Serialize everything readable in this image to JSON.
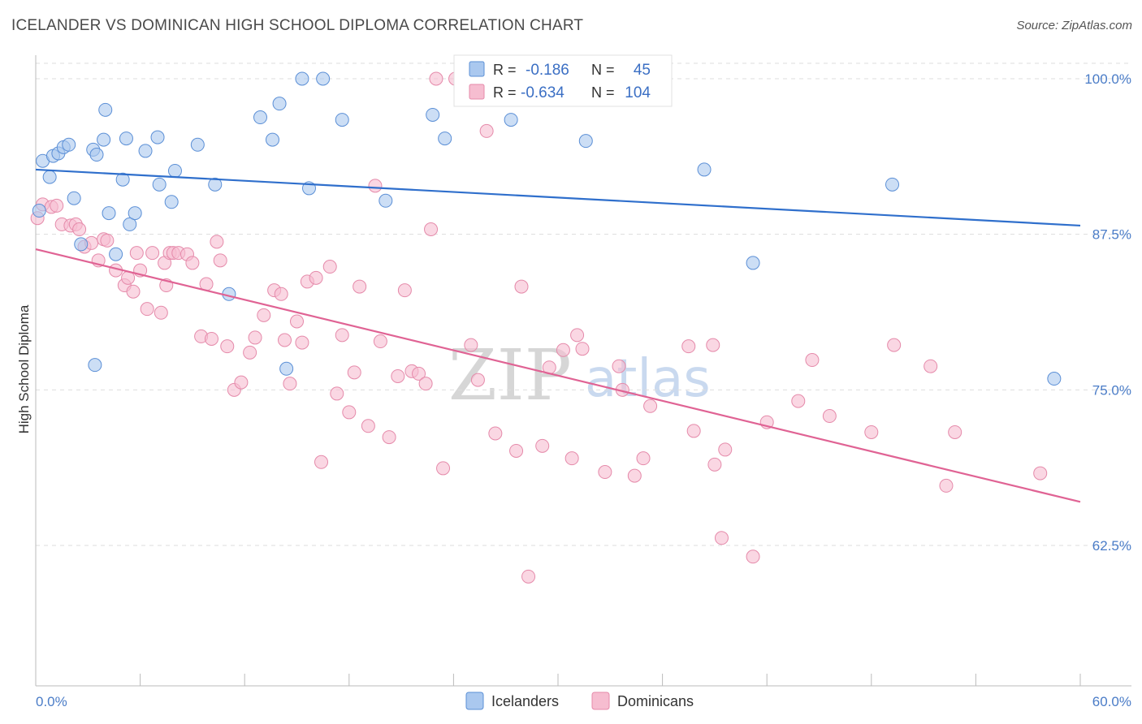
{
  "header": {
    "title": "ICELANDER VS DOMINICAN HIGH SCHOOL DIPLOMA CORRELATION CHART",
    "source": "Source: ZipAtlas.com"
  },
  "legend": {
    "rows": [
      {
        "r_label": "R =",
        "r_value": "-0.186",
        "n_label": "N =",
        "n_value": "45"
      },
      {
        "r_label": "R =",
        "r_value": "-0.634",
        "n_label": "N =",
        "n_value": "104"
      }
    ]
  },
  "bottom_legend": {
    "items": [
      "Icelanders",
      "Dominicans"
    ]
  },
  "watermark": {
    "zip": "ZIP",
    "atlas": "atlas"
  },
  "colors": {
    "blue_fill": "#aac8ef",
    "blue_stroke": "#5b8fd6",
    "blue_line": "#2f6fcc",
    "pink_fill": "#f6bdd0",
    "pink_stroke": "#e58aaa",
    "pink_line": "#e06394",
    "tick_text": "#4a7cc7",
    "grid": "#dddddd"
  },
  "chart_data": {
    "type": "scatter",
    "title": "ICELANDER VS DOMINICAN HIGH SCHOOL DIPLOMA CORRELATION CHART",
    "xlabel": "",
    "ylabel": "High School Diploma",
    "xlim": [
      0,
      60
    ],
    "ylim": [
      50,
      101.5
    ],
    "x_tick_labels": [
      "0.0%",
      "60.0%"
    ],
    "y_ticks": [
      62.5,
      75.0,
      87.5,
      100.0
    ],
    "y_tick_labels": [
      "62.5%",
      "75.0%",
      "87.5%",
      "100.0%"
    ],
    "grid": true,
    "legend_position": "top-center",
    "series": [
      {
        "name": "Icelanders",
        "R": -0.186,
        "N": 45,
        "trend": {
          "x": [
            0,
            60
          ],
          "y": [
            92.7,
            88.2
          ]
        },
        "points": [
          [
            0.2,
            89.4
          ],
          [
            0.4,
            93.4
          ],
          [
            0.8,
            92.1
          ],
          [
            1.0,
            93.8
          ],
          [
            1.3,
            94.0
          ],
          [
            1.6,
            94.5
          ],
          [
            1.9,
            94.7
          ],
          [
            2.2,
            90.4
          ],
          [
            2.6,
            86.7
          ],
          [
            3.3,
            94.3
          ],
          [
            3.5,
            93.9
          ],
          [
            3.4,
            77.0
          ],
          [
            3.9,
            95.1
          ],
          [
            4.0,
            97.5
          ],
          [
            4.2,
            89.2
          ],
          [
            4.6,
            85.9
          ],
          [
            5.0,
            91.9
          ],
          [
            5.2,
            95.2
          ],
          [
            5.4,
            88.3
          ],
          [
            5.7,
            89.2
          ],
          [
            6.3,
            94.2
          ],
          [
            7.0,
            95.3
          ],
          [
            7.1,
            91.5
          ],
          [
            7.8,
            90.1
          ],
          [
            8.0,
            92.6
          ],
          [
            9.3,
            94.7
          ],
          [
            10.3,
            91.5
          ],
          [
            11.1,
            82.7
          ],
          [
            12.9,
            96.9
          ],
          [
            13.6,
            95.1
          ],
          [
            14.0,
            98.0
          ],
          [
            14.4,
            76.7
          ],
          [
            15.3,
            100.0
          ],
          [
            15.7,
            91.2
          ],
          [
            16.5,
            100.0
          ],
          [
            17.6,
            96.7
          ],
          [
            20.1,
            90.2
          ],
          [
            22.8,
            97.1
          ],
          [
            23.5,
            95.2
          ],
          [
            27.3,
            96.7
          ],
          [
            31.6,
            95.0
          ],
          [
            38.4,
            92.7
          ],
          [
            41.2,
            85.2
          ],
          [
            49.2,
            91.5
          ],
          [
            58.5,
            75.9
          ]
        ]
      },
      {
        "name": "Dominicans",
        "R": -0.634,
        "N": 104,
        "trend": {
          "x": [
            0,
            60
          ],
          "y": [
            86.3,
            66.0
          ]
        },
        "points": [
          [
            0.1,
            88.8
          ],
          [
            0.4,
            89.9
          ],
          [
            0.9,
            89.7
          ],
          [
            1.2,
            89.8
          ],
          [
            1.5,
            88.3
          ],
          [
            2.0,
            88.2
          ],
          [
            2.3,
            88.3
          ],
          [
            2.5,
            87.9
          ],
          [
            2.8,
            86.5
          ],
          [
            3.2,
            86.8
          ],
          [
            3.6,
            85.4
          ],
          [
            3.9,
            87.1
          ],
          [
            4.1,
            87.0
          ],
          [
            4.6,
            84.6
          ],
          [
            5.1,
            83.4
          ],
          [
            5.3,
            84.0
          ],
          [
            5.6,
            82.9
          ],
          [
            5.8,
            86.0
          ],
          [
            6.0,
            84.6
          ],
          [
            6.4,
            81.5
          ],
          [
            6.7,
            86.0
          ],
          [
            7.2,
            81.2
          ],
          [
            7.4,
            85.2
          ],
          [
            7.5,
            83.4
          ],
          [
            7.7,
            86.0
          ],
          [
            7.9,
            86.0
          ],
          [
            8.2,
            86.0
          ],
          [
            8.7,
            85.9
          ],
          [
            9.0,
            85.2
          ],
          [
            9.5,
            79.3
          ],
          [
            9.8,
            83.5
          ],
          [
            10.1,
            79.1
          ],
          [
            10.4,
            86.9
          ],
          [
            10.6,
            85.4
          ],
          [
            11.0,
            78.5
          ],
          [
            11.4,
            75.0
          ],
          [
            11.8,
            75.6
          ],
          [
            12.3,
            78.0
          ],
          [
            12.6,
            79.2
          ],
          [
            13.1,
            81.0
          ],
          [
            13.7,
            83.0
          ],
          [
            14.1,
            82.7
          ],
          [
            14.3,
            79.0
          ],
          [
            14.6,
            75.5
          ],
          [
            15.0,
            80.5
          ],
          [
            15.3,
            78.8
          ],
          [
            15.6,
            83.7
          ],
          [
            16.1,
            84.0
          ],
          [
            16.4,
            69.2
          ],
          [
            16.9,
            84.9
          ],
          [
            17.3,
            74.7
          ],
          [
            17.6,
            79.4
          ],
          [
            18.0,
            73.2
          ],
          [
            18.3,
            76.4
          ],
          [
            18.6,
            83.3
          ],
          [
            19.1,
            72.1
          ],
          [
            19.5,
            91.4
          ],
          [
            19.8,
            78.9
          ],
          [
            20.3,
            71.2
          ],
          [
            20.8,
            76.1
          ],
          [
            21.2,
            83.0
          ],
          [
            21.6,
            76.5
          ],
          [
            22.0,
            76.3
          ],
          [
            22.4,
            75.5
          ],
          [
            22.7,
            87.9
          ],
          [
            23.0,
            100.0
          ],
          [
            23.4,
            68.7
          ],
          [
            24.1,
            100.0
          ],
          [
            25.0,
            78.6
          ],
          [
            25.4,
            75.8
          ],
          [
            25.9,
            95.8
          ],
          [
            26.4,
            71.5
          ],
          [
            27.6,
            70.1
          ],
          [
            27.9,
            83.3
          ],
          [
            28.3,
            60.0
          ],
          [
            29.1,
            70.5
          ],
          [
            29.5,
            76.8
          ],
          [
            30.3,
            78.2
          ],
          [
            30.8,
            69.5
          ],
          [
            31.1,
            79.4
          ],
          [
            31.4,
            78.3
          ],
          [
            32.7,
            68.4
          ],
          [
            33.5,
            76.9
          ],
          [
            33.7,
            75.0
          ],
          [
            34.4,
            68.1
          ],
          [
            34.9,
            69.5
          ],
          [
            35.3,
            73.7
          ],
          [
            37.5,
            78.5
          ],
          [
            37.8,
            71.7
          ],
          [
            38.9,
            78.6
          ],
          [
            39.0,
            69.0
          ],
          [
            39.4,
            63.1
          ],
          [
            39.6,
            70.2
          ],
          [
            41.2,
            61.6
          ],
          [
            42.0,
            72.4
          ],
          [
            43.8,
            74.1
          ],
          [
            44.6,
            77.4
          ],
          [
            45.6,
            72.9
          ],
          [
            48.0,
            71.6
          ],
          [
            49.3,
            78.6
          ],
          [
            51.4,
            76.9
          ],
          [
            52.3,
            67.3
          ],
          [
            52.8,
            71.6
          ],
          [
            57.7,
            68.3
          ]
        ]
      }
    ]
  }
}
